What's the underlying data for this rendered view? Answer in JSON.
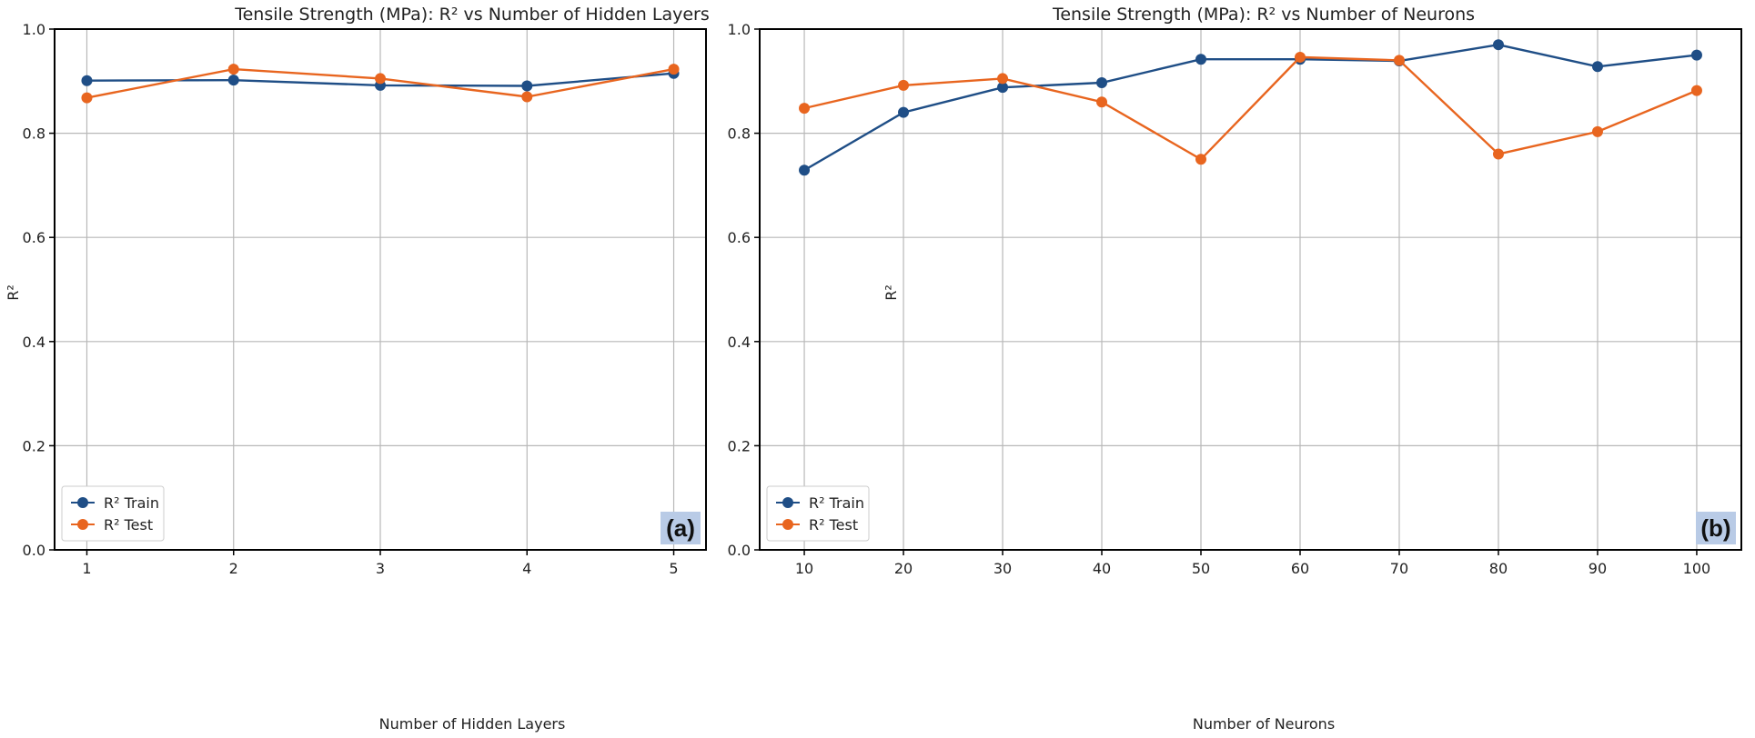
{
  "colors": {
    "train": "#1f4e86",
    "test": "#e8651f",
    "grid": "#b8b8b8",
    "tag_bg": "#b9cbe6"
  },
  "chart_data": [
    {
      "type": "line",
      "title": "Tensile Strength (MPa): R² vs Number of Hidden Layers",
      "xlabel": "Number of Hidden Layers",
      "ylabel": "R²",
      "x": [
        1,
        2,
        3,
        4,
        5
      ],
      "xticks": [
        "1",
        "2",
        "3",
        "4",
        "5"
      ],
      "xlim": [
        0.78,
        5.22
      ],
      "ylim": [
        0.0,
        1.0
      ],
      "yticks": [
        "0.0",
        "0.2",
        "0.4",
        "0.6",
        "0.8",
        "1.0"
      ],
      "grid": true,
      "legend_position": "bottom-left",
      "panel_label": "(a)",
      "series": [
        {
          "name": "R² Train",
          "color_key": "train",
          "values": [
            0.901,
            0.902,
            0.892,
            0.891,
            0.915
          ]
        },
        {
          "name": "R² Test",
          "color_key": "test",
          "values": [
            0.868,
            0.923,
            0.905,
            0.87,
            0.923
          ]
        }
      ]
    },
    {
      "type": "line",
      "title": "Tensile Strength (MPa): R² vs Number of Neurons",
      "xlabel": "Number of Neurons",
      "ylabel": "R²",
      "x": [
        10,
        20,
        30,
        40,
        50,
        60,
        70,
        80,
        90,
        100
      ],
      "xticks": [
        "10",
        "20",
        "30",
        "40",
        "50",
        "60",
        "70",
        "80",
        "90",
        "100"
      ],
      "xlim": [
        5.5,
        104.5
      ],
      "ylim": [
        0.0,
        1.0
      ],
      "yticks": [
        "0.0",
        "0.2",
        "0.4",
        "0.6",
        "0.8",
        "1.0"
      ],
      "grid": true,
      "legend_position": "bottom-left",
      "panel_label": "(b)",
      "series": [
        {
          "name": "R² Train",
          "color_key": "train",
          "values": [
            0.729,
            0.84,
            0.888,
            0.897,
            0.942,
            0.942,
            0.939,
            0.97,
            0.928,
            0.95
          ]
        },
        {
          "name": "R² Test",
          "color_key": "test",
          "values": [
            0.848,
            0.892,
            0.905,
            0.86,
            0.75,
            0.946,
            0.94,
            0.76,
            0.803,
            0.882
          ]
        }
      ]
    }
  ]
}
